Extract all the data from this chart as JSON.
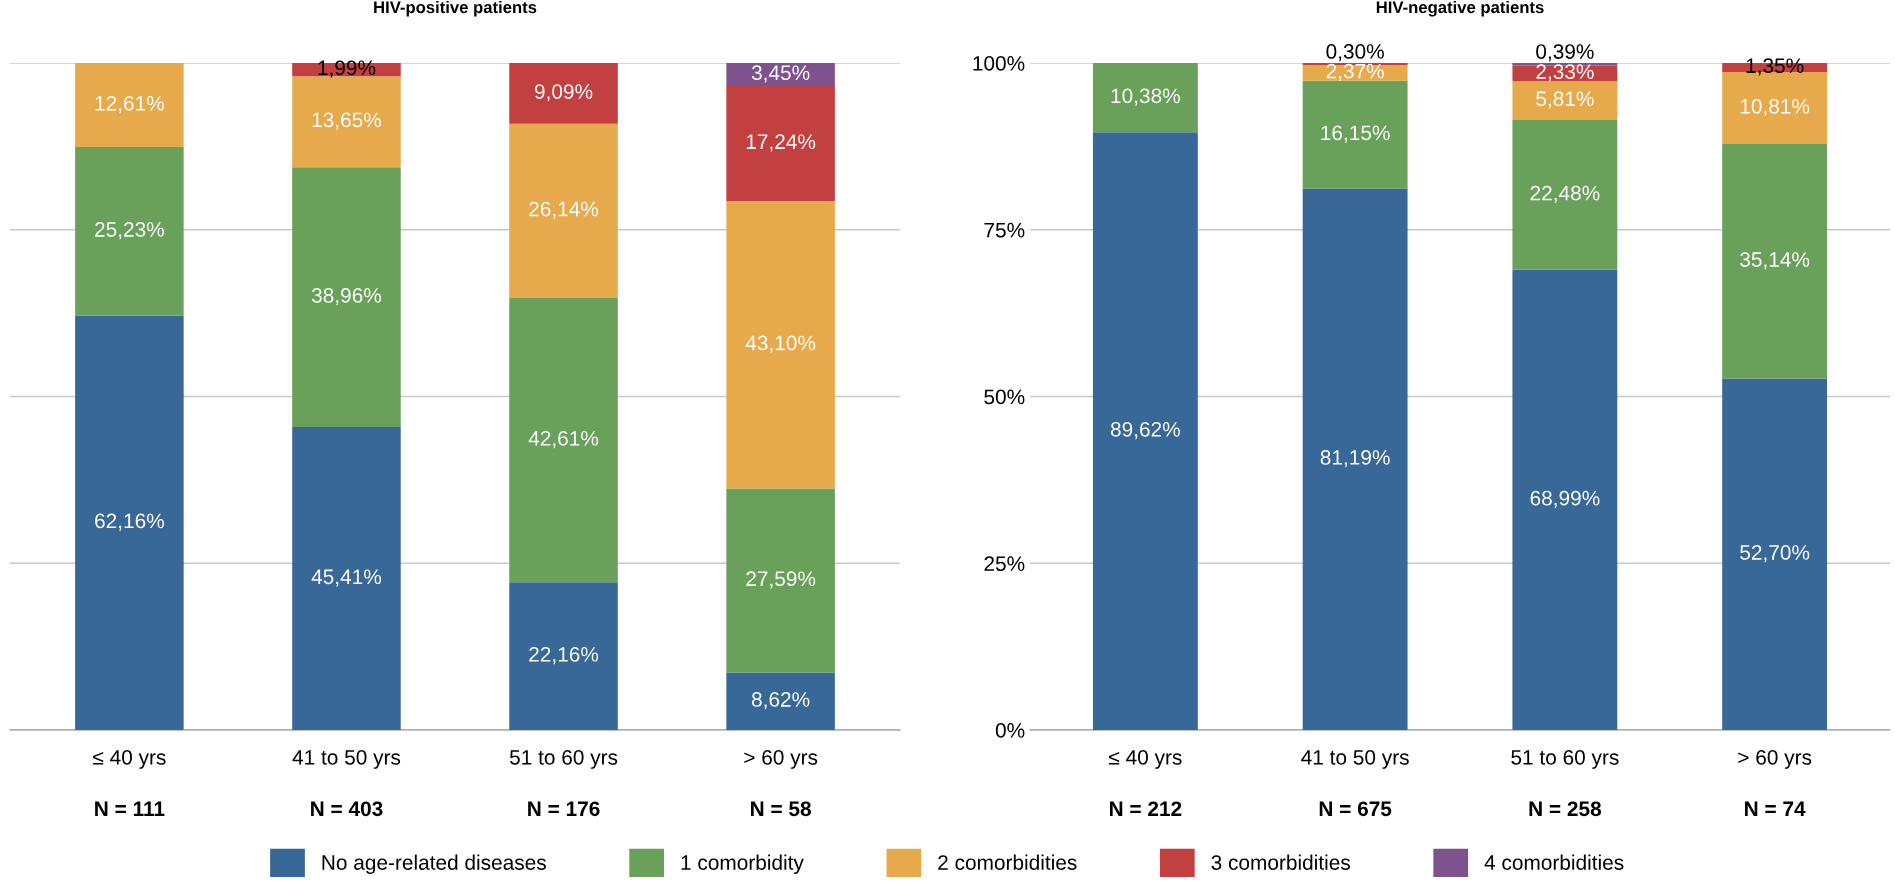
{
  "chart_data": [
    {
      "type": "bar",
      "stacked": true,
      "title": "HIV-positive patients",
      "categories": [
        "≤ 40 yrs",
        "41 to 50 yrs",
        "51 to 60 yrs",
        "> 60 yrs"
      ],
      "annotations": [
        "N = 111",
        "N = 403",
        "N = 176",
        "N = 58"
      ],
      "ylim": [
        0,
        100
      ],
      "yticks": [
        {
          "value": 0,
          "label": null
        },
        {
          "value": 25,
          "label": null
        },
        {
          "value": 50,
          "label": null
        },
        {
          "value": 75,
          "label": null
        },
        {
          "value": 100,
          "label": null
        }
      ],
      "tick_labels": "x",
      "grid": "y",
      "legend": "bottom",
      "series": [
        {
          "name": "No age-related diseases",
          "color": "#376897",
          "values": [
            62.16,
            45.41,
            22.16,
            8.62
          ],
          "value_labels": [
            "62,16%",
            "45,41%",
            "22,16%",
            "8,62%"
          ]
        },
        {
          "name": "1 comorbidity",
          "color": "#6aa15a",
          "values": [
            25.23,
            38.96,
            42.61,
            27.59
          ],
          "value_labels": [
            "25,23%",
            "38,96%",
            "42,61%",
            "27,59%"
          ]
        },
        {
          "name": "2 comorbidities",
          "color": "#e6aa4d",
          "values": [
            12.61,
            13.65,
            26.14,
            43.1
          ],
          "value_labels": [
            "12,61%",
            "13,65%",
            "26,14%",
            "43,10%"
          ]
        },
        {
          "name": "3 comorbidities",
          "color": "#c2403f",
          "values": [
            0,
            1.99,
            9.09,
            17.24
          ],
          "value_labels": [
            null,
            "1,99%",
            "9,09%",
            "17,24%"
          ]
        },
        {
          "name": "4 comorbidities",
          "color": "#7e528c",
          "values": [
            0,
            0,
            0,
            3.45
          ],
          "value_labels": [
            null,
            null,
            null,
            "3,45%"
          ]
        }
      ]
    },
    {
      "type": "bar",
      "stacked": true,
      "title": "HIV-negative patients",
      "categories": [
        "≤ 40 yrs",
        "41 to 50 yrs",
        "51 to 60 yrs",
        "> 60 yrs"
      ],
      "annotations": [
        "N = 212",
        "N = 675",
        "N = 258",
        "N = 74"
      ],
      "ylim": [
        0,
        100
      ],
      "yticks": [
        {
          "value": 0,
          "label": "0%"
        },
        {
          "value": 25,
          "label": "25%"
        },
        {
          "value": 50,
          "label": "50%"
        },
        {
          "value": 75,
          "label": "75%"
        },
        {
          "value": 100,
          "label": "100%"
        }
      ],
      "grid": "y",
      "series": [
        {
          "color": "#376897",
          "values": [
            89.62,
            81.19,
            68.99,
            52.7
          ],
          "value_labels": [
            "89,62%",
            "81,19%",
            "68,99%",
            "52,70%"
          ]
        },
        {
          "color": "#6aa15a",
          "values": [
            10.38,
            16.15,
            22.48,
            35.14
          ],
          "value_labels": [
            "10,38%",
            "16,15%",
            "22,48%",
            "35,14%"
          ]
        },
        {
          "color": "#e6aa4d",
          "values": [
            0,
            2.37,
            5.81,
            10.81
          ],
          "value_labels": [
            null,
            "2,37%",
            "5,81%",
            "10,81%"
          ]
        },
        {
          "color": "#c2403f",
          "values": [
            0,
            0.3,
            2.33,
            1.35
          ],
          "value_labels": [
            null,
            "0,30%",
            "2,33%",
            "1,35%"
          ]
        },
        {
          "color": "#7e528c",
          "values": [
            0,
            0,
            0.39,
            0
          ],
          "value_labels": [
            null,
            null,
            "0,39%",
            null
          ]
        }
      ]
    }
  ]
}
